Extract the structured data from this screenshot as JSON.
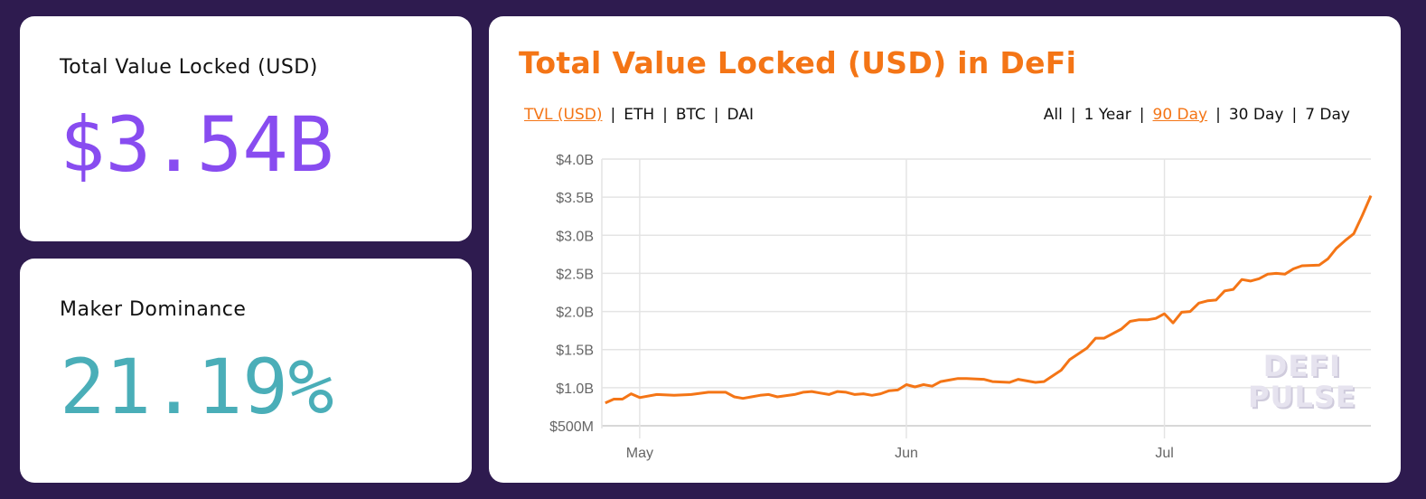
{
  "tvl_card": {
    "label": "Total Value Locked (USD)",
    "value": "$3.54B",
    "color": "#884cf0"
  },
  "maker_card": {
    "label": "Maker Dominance",
    "value": "21.19%",
    "color": "#4aaeb8"
  },
  "chart_panel": {
    "title": "Total Value Locked (USD) in DeFi",
    "unit_tabs": [
      {
        "label": "TVL (USD)",
        "active": true
      },
      {
        "label": "ETH",
        "active": false
      },
      {
        "label": "BTC",
        "active": false
      },
      {
        "label": "DAI",
        "active": false
      }
    ],
    "separator": "|",
    "range_tabs": [
      {
        "label": "All",
        "active": false
      },
      {
        "label": "1 Year",
        "active": false
      },
      {
        "label": "90 Day",
        "active": true
      },
      {
        "label": "30 Day",
        "active": false
      },
      {
        "label": "7 Day",
        "active": false
      }
    ],
    "watermark": [
      "DEFI",
      "PULSE"
    ]
  },
  "chart_data": {
    "type": "line",
    "title": "",
    "xlabel": "",
    "ylabel": "",
    "grid": true,
    "line_color": "#f47516",
    "ylim": [
      0.5,
      4.0
    ],
    "y_unit": "billion USD",
    "yticks": [
      {
        "value": 4.0,
        "label": "$4.0B"
      },
      {
        "value": 3.5,
        "label": "$3.5B"
      },
      {
        "value": 3.0,
        "label": "$3.0B"
      },
      {
        "value": 2.5,
        "label": "$2.5B"
      },
      {
        "value": 2.0,
        "label": "$2.0B"
      },
      {
        "value": 1.5,
        "label": "$1.5B"
      },
      {
        "value": 1.0,
        "label": "$1.0B"
      },
      {
        "value": 0.5,
        "label": "$500M"
      }
    ],
    "xticks": [
      {
        "date": "May 1",
        "label": "May"
      },
      {
        "date": "Jun 1",
        "label": "Jun"
      },
      {
        "date": "Jul 1",
        "label": "Jul"
      }
    ],
    "series": [
      {
        "points": [
          [
            "Apr 27",
            0.8
          ],
          [
            "Apr 28",
            0.85
          ],
          [
            "Apr 29",
            0.85
          ],
          [
            "Apr 30",
            0.92
          ],
          [
            "May 1",
            0.87
          ],
          [
            "May 3",
            0.91
          ],
          [
            "May 5",
            0.9
          ],
          [
            "May 7",
            0.91
          ],
          [
            "May 9",
            0.94
          ],
          [
            "May 11",
            0.94
          ],
          [
            "May 12",
            0.88
          ],
          [
            "May 13",
            0.86
          ],
          [
            "May 14",
            0.88
          ],
          [
            "May 15",
            0.9
          ],
          [
            "May 16",
            0.91
          ],
          [
            "May 17",
            0.88
          ],
          [
            "May 19",
            0.91
          ],
          [
            "May 20",
            0.94
          ],
          [
            "May 21",
            0.95
          ],
          [
            "May 22",
            0.93
          ],
          [
            "May 23",
            0.91
          ],
          [
            "May 24",
            0.95
          ],
          [
            "May 25",
            0.94
          ],
          [
            "May 26",
            0.91
          ],
          [
            "May 27",
            0.92
          ],
          [
            "May 28",
            0.9
          ],
          [
            "May 29",
            0.92
          ],
          [
            "May 30",
            0.96
          ],
          [
            "May 31",
            0.97
          ],
          [
            "Jun 1",
            1.04
          ],
          [
            "Jun 2",
            1.01
          ],
          [
            "Jun 3",
            1.04
          ],
          [
            "Jun 4",
            1.02
          ],
          [
            "Jun 5",
            1.08
          ],
          [
            "Jun 6",
            1.1
          ],
          [
            "Jun 7",
            1.12
          ],
          [
            "Jun 8",
            1.12
          ],
          [
            "Jun 10",
            1.11
          ],
          [
            "Jun 11",
            1.08
          ],
          [
            "Jun 13",
            1.07
          ],
          [
            "Jun 14",
            1.11
          ],
          [
            "Jun 16",
            1.07
          ],
          [
            "Jun 17",
            1.08
          ],
          [
            "Jun 19",
            1.23
          ],
          [
            "Jun 20",
            1.37
          ],
          [
            "Jun 22",
            1.52
          ],
          [
            "Jun 23",
            1.65
          ],
          [
            "Jun 24",
            1.65
          ],
          [
            "Jun 26",
            1.77
          ],
          [
            "Jun 27",
            1.87
          ],
          [
            "Jun 28",
            1.89
          ],
          [
            "Jun 29",
            1.89
          ],
          [
            "Jun 30",
            1.91
          ],
          [
            "Jul 1",
            1.97
          ],
          [
            "Jul 2",
            1.85
          ],
          [
            "Jul 3",
            1.99
          ],
          [
            "Jul 4",
            2.0
          ],
          [
            "Jul 5",
            2.11
          ],
          [
            "Jul 6",
            2.14
          ],
          [
            "Jul 7",
            2.15
          ],
          [
            "Jul 8",
            2.27
          ],
          [
            "Jul 9",
            2.29
          ],
          [
            "Jul 10",
            2.42
          ],
          [
            "Jul 11",
            2.4
          ],
          [
            "Jul 12",
            2.43
          ],
          [
            "Jul 13",
            2.49
          ],
          [
            "Jul 14",
            2.5
          ],
          [
            "Jul 15",
            2.49
          ],
          [
            "Jul 16",
            2.56
          ],
          [
            "Jul 17",
            2.6
          ],
          [
            "Jul 19",
            2.61
          ],
          [
            "Jul 20",
            2.69
          ],
          [
            "Jul 21",
            2.83
          ],
          [
            "Jul 22",
            2.93
          ],
          [
            "Jul 23",
            3.02
          ],
          [
            "Jul 24",
            3.26
          ],
          [
            "Jul 25",
            3.52
          ]
        ]
      }
    ]
  }
}
